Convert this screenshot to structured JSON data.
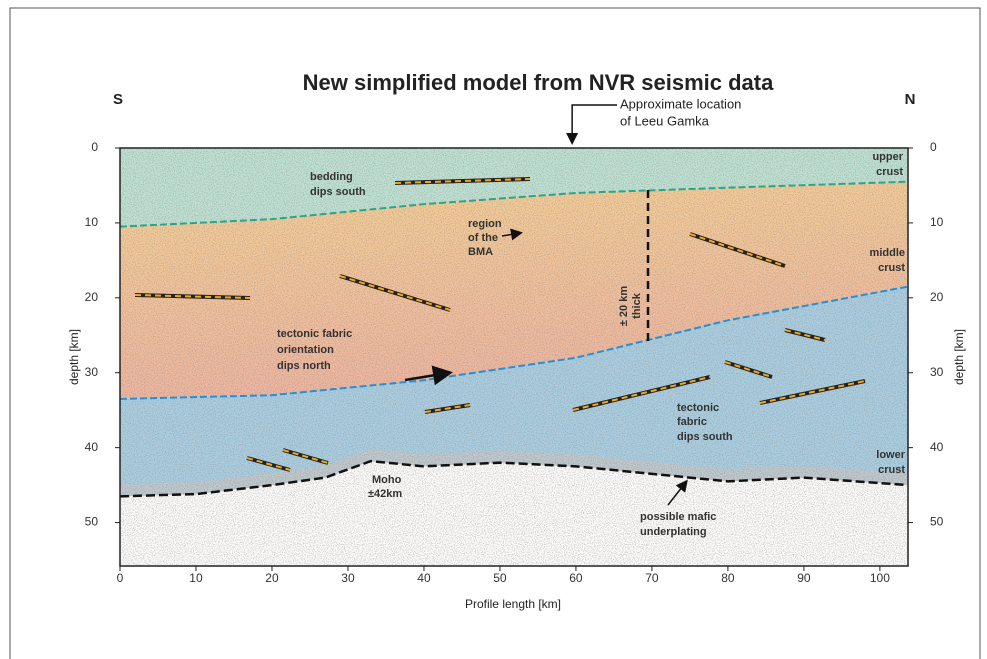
{
  "chart_data": {
    "type": "section",
    "title": "New simplified model from NVR seismic data",
    "xlabel": "Profile length [km]",
    "ylabel": "depth [km]",
    "y2label": "depth [km]",
    "left_label": "S",
    "right_label": "N",
    "callout": [
      "Approximate location",
      "of Leeu Gamka"
    ],
    "callout_x": 59.5,
    "annotations": [
      "upper",
      "crust",
      "bedding",
      "dips south",
      "region",
      "of the",
      "BMA",
      "middle",
      "crust",
      "tectonic fabric",
      "orientation",
      "dips north",
      "± 20 km",
      "thick",
      "tectonic",
      "fabric",
      "dips south",
      "lower",
      "crust",
      "Moho",
      "±42km",
      "possible mafic",
      "underplating"
    ],
    "xlim": [
      0,
      103.7
    ],
    "ylim": [
      0,
      55.8
    ],
    "xticks": [
      0,
      10,
      20,
      30,
      40,
      50,
      60,
      70,
      80,
      90,
      100
    ],
    "yticks": [
      0,
      10,
      20,
      30,
      40,
      50
    ],
    "y2ticks": [
      0,
      10,
      20,
      30,
      40,
      50
    ],
    "series": [
      {
        "color": "#2aa58a",
        "x": [
          0,
          20,
          40,
          60,
          80,
          103.7
        ],
        "values": [
          10.5,
          9.5,
          7.5,
          6,
          5.3,
          4.5
        ]
      },
      {
        "color": "#2a8fd0",
        "x": [
          0,
          20,
          40,
          60,
          80,
          103.7
        ],
        "values": [
          33.5,
          33,
          31,
          28,
          23,
          18.5
        ]
      },
      {
        "color": "#111111",
        "x": [
          0,
          10,
          20,
          27,
          33,
          40,
          50,
          60,
          70,
          80,
          90,
          103.7
        ],
        "values": [
          46.5,
          46.2,
          45,
          44,
          41.8,
          42.5,
          42,
          42.5,
          43.5,
          44.5,
          44,
          45
        ]
      }
    ],
    "layer_colors": [
      "#bfe4d6",
      "#f6cf98",
      "#aad0e4"
    ]
  }
}
